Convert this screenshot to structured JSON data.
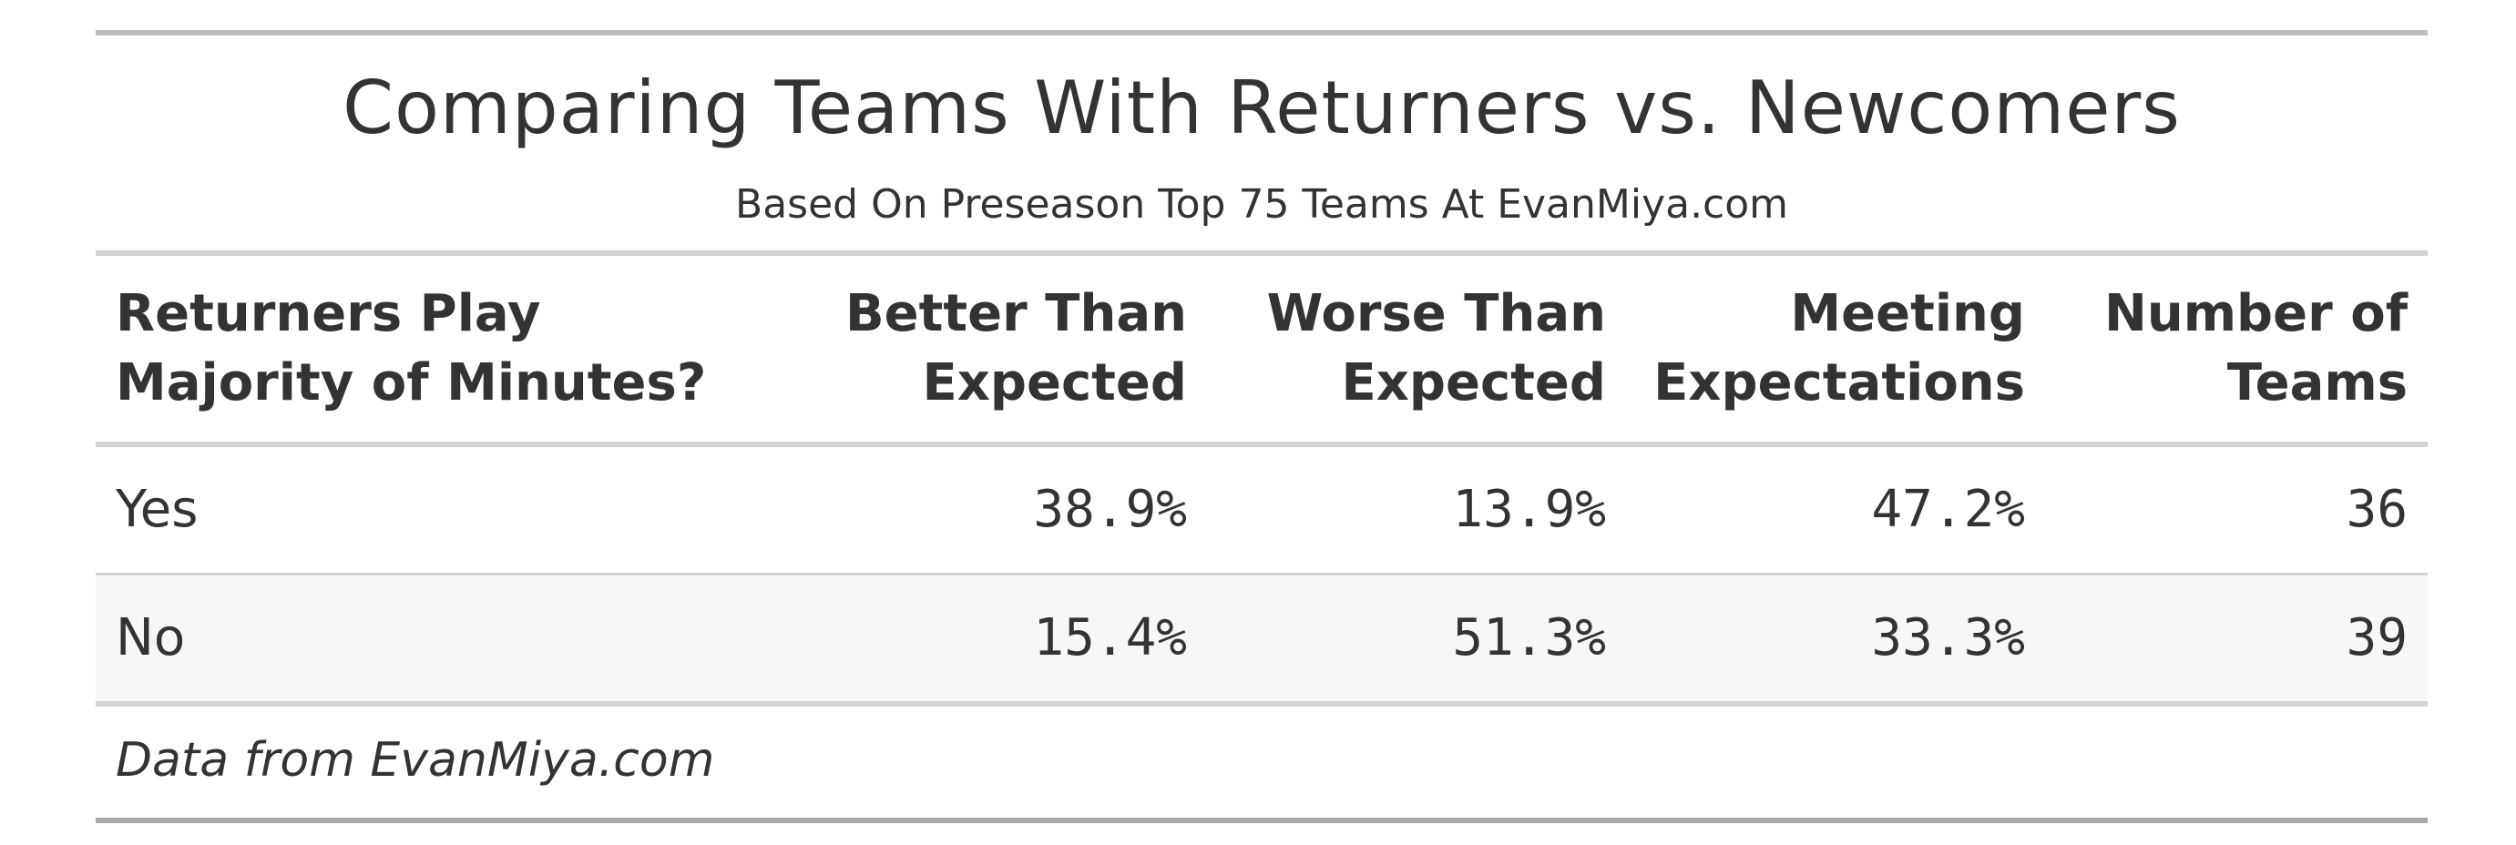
{
  "chart_data": {
    "type": "table",
    "title": "Comparing Teams With Returners vs. Newcomers",
    "subtitle": "Based On Preseason Top 75 Teams At EvanMiya.com",
    "columns": [
      "Returners Play\nMajority of Minutes?",
      "Better Than\nExpected",
      "Worse Than\nExpected",
      "Meeting\nExpectations",
      "Number of\nTeams"
    ],
    "rows": [
      [
        "Yes",
        "38.9%",
        "13.9%",
        "47.2%",
        "36"
      ],
      [
        "No",
        "15.4%",
        "51.3%",
        "33.3%",
        "39"
      ]
    ],
    "source_note": "Data from EvanMiya.com"
  }
}
